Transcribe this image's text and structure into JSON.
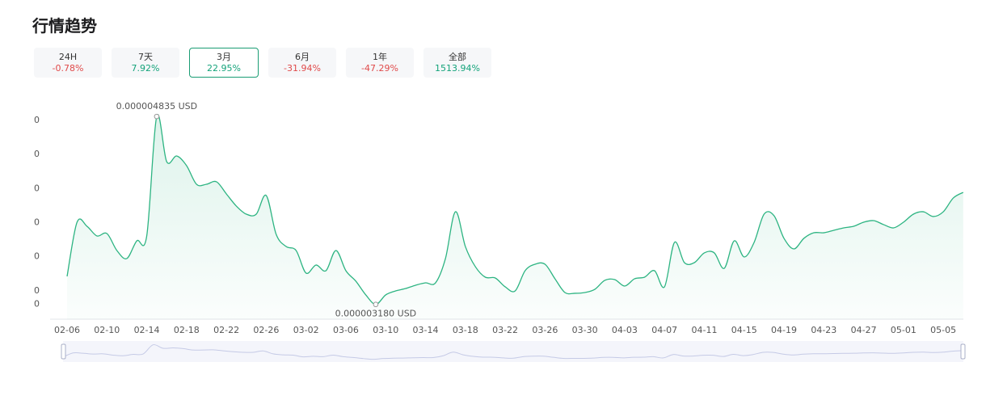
{
  "title": "行情趋势",
  "active_tab": 2,
  "tabs": [
    {
      "label": "24H",
      "change": "-0.78%"
    },
    {
      "label": "7天",
      "change": "7.92%"
    },
    {
      "label": "3月",
      "change": "22.95%"
    },
    {
      "label": "6月",
      "change": "-31.94%"
    },
    {
      "label": "1年",
      "change": "-47.29%"
    },
    {
      "label": "全部",
      "change": "1513.94%"
    }
  ],
  "chart_data": {
    "type": "area",
    "color": "#2db482",
    "max_label": "0.000004835 USD",
    "min_label": "0.000003180 USD",
    "ylim": [
      3.05e-06,
      4.9e-06
    ],
    "yticks": [
      {
        "value": 4.8e-06,
        "label": "0"
      },
      {
        "value": 4.5e-06,
        "label": "0"
      },
      {
        "value": 4.2e-06,
        "label": "0"
      },
      {
        "value": 3.9e-06,
        "label": "0"
      },
      {
        "value": 3.6e-06,
        "label": "0"
      },
      {
        "value": 3.3e-06,
        "label": "0"
      },
      {
        "value": 3.18e-06,
        "label": "0"
      }
    ],
    "categories": [
      "02-06",
      null,
      null,
      null,
      "02-10",
      null,
      null,
      null,
      "02-14",
      null,
      null,
      null,
      "02-18",
      null,
      null,
      null,
      "02-22",
      null,
      null,
      null,
      "02-26",
      null,
      null,
      null,
      "03-02",
      null,
      null,
      null,
      "03-06",
      null,
      null,
      null,
      "03-10",
      null,
      null,
      null,
      "03-14",
      null,
      null,
      null,
      "03-18",
      null,
      null,
      null,
      "03-22",
      null,
      null,
      null,
      "03-26",
      null,
      null,
      null,
      "03-30",
      null,
      null,
      null,
      "04-03",
      null,
      null,
      null,
      "04-07",
      null,
      null,
      null,
      "04-11",
      null,
      null,
      null,
      "04-15",
      null,
      null,
      null,
      "04-19",
      null,
      null,
      null,
      "04-23",
      null,
      null,
      null,
      "04-27",
      null,
      null,
      null,
      "05-01",
      null,
      null,
      null,
      "05-05",
      null,
      null
    ],
    "values": [
      3.427e-06,
      3.904e-06,
      3.868e-06,
      3.783e-06,
      3.804e-06,
      3.655e-06,
      3.584e-06,
      3.74e-06,
      3.783e-06,
      4.835e-06,
      4.438e-06,
      4.487e-06,
      4.402e-06,
      4.238e-06,
      4.238e-06,
      4.26e-06,
      4.153e-06,
      4.046e-06,
      3.975e-06,
      3.975e-06,
      4.139e-06,
      3.797e-06,
      3.69e-06,
      3.655e-06,
      3.456e-06,
      3.527e-06,
      3.477e-06,
      3.655e-06,
      3.477e-06,
      3.385e-06,
      3.264e-06,
      3.18e-06,
      3.264e-06,
      3.299e-06,
      3.32e-06,
      3.349e-06,
      3.37e-06,
      3.37e-06,
      3.584e-06,
      3.996e-06,
      3.69e-06,
      3.513e-06,
      3.42e-06,
      3.413e-06,
      3.335e-06,
      3.299e-06,
      3.477e-06,
      3.534e-06,
      3.534e-06,
      3.406e-06,
      3.285e-06,
      3.278e-06,
      3.285e-06,
      3.313e-06,
      3.392e-06,
      3.399e-06,
      3.342e-06,
      3.406e-06,
      3.42e-06,
      3.477e-06,
      3.335e-06,
      3.726e-06,
      3.548e-06,
      3.548e-06,
      3.634e-06,
      3.634e-06,
      3.498e-06,
      3.74e-06,
      3.598e-06,
      3.726e-06,
      3.975e-06,
      3.961e-06,
      3.762e-06,
      3.669e-06,
      3.762e-06,
      3.811e-06,
      3.811e-06,
      3.833e-06,
      3.854e-06,
      3.868e-06,
      3.904e-06,
      3.918e-06,
      3.883e-06,
      3.854e-06,
      3.904e-06,
      3.975e-06,
      3.996e-06,
      3.954e-06,
      3.996e-06,
      4.117e-06,
      4.167e-06
    ]
  }
}
